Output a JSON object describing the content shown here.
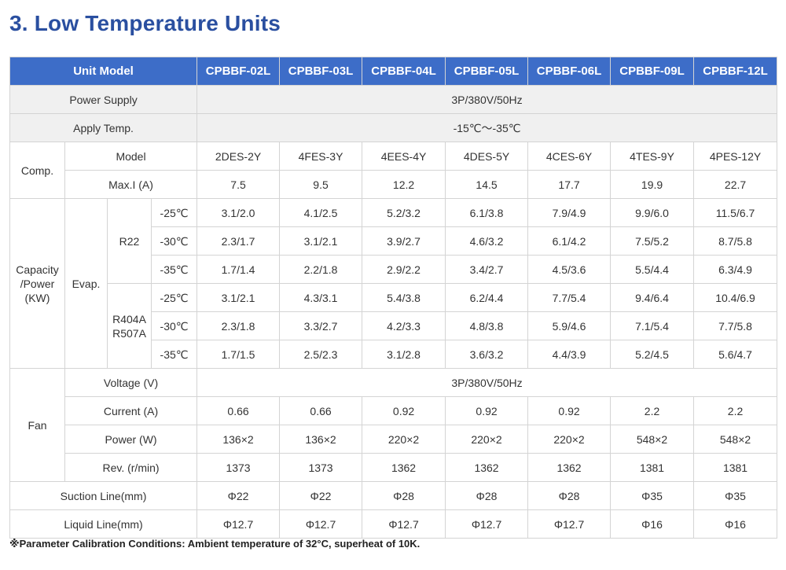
{
  "title": "3. Low Temperature Units",
  "header": {
    "unit_model": "Unit Model",
    "models": [
      "CPBBF-02L",
      "CPBBF-03L",
      "CPBBF-04L",
      "CPBBF-05L",
      "CPBBF-06L",
      "CPBBF-09L",
      "CPBBF-12L"
    ]
  },
  "power_supply": {
    "label": "Power Supply",
    "value": "3P/380V/50Hz"
  },
  "apply_temp": {
    "label": "Apply Temp.",
    "value": "-15℃～-35℃"
  },
  "comp": {
    "label": "Comp.",
    "model": {
      "label": "Model",
      "values": [
        "2DES-2Y",
        "4FES-3Y",
        "4EES-4Y",
        "4DES-5Y",
        "4CES-6Y",
        "4TES-9Y",
        "4PES-12Y"
      ]
    },
    "max_i": {
      "label": "Max.I (A)",
      "values": [
        "7.5",
        "9.5",
        "12.2",
        "14.5",
        "17.7",
        "19.9",
        "22.7"
      ]
    }
  },
  "capacity": {
    "label_lines": [
      "Capacity",
      "/Power",
      "(KW)"
    ],
    "evap_label": "Evap.",
    "groups": [
      {
        "refrigerant_lines": [
          "R22"
        ],
        "rows": [
          {
            "temp": "-25℃",
            "values": [
              "3.1/2.0",
              "4.1/2.5",
              "5.2/3.2",
              "6.1/3.8",
              "7.9/4.9",
              "9.9/6.0",
              "11.5/6.7"
            ]
          },
          {
            "temp": "-30℃",
            "values": [
              "2.3/1.7",
              "3.1/2.1",
              "3.9/2.7",
              "4.6/3.2",
              "6.1/4.2",
              "7.5/5.2",
              "8.7/5.8"
            ]
          },
          {
            "temp": "-35℃",
            "values": [
              "1.7/1.4",
              "2.2/1.8",
              "2.9/2.2",
              "3.4/2.7",
              "4.5/3.6",
              "5.5/4.4",
              "6.3/4.9"
            ]
          }
        ]
      },
      {
        "refrigerant_lines": [
          "R404A",
          "R507A"
        ],
        "rows": [
          {
            "temp": "-25℃",
            "values": [
              "3.1/2.1",
              "4.3/3.1",
              "5.4/3.8",
              "6.2/4.4",
              "7.7/5.4",
              "9.4/6.4",
              "10.4/6.9"
            ]
          },
          {
            "temp": "-30℃",
            "values": [
              "2.3/1.8",
              "3.3/2.7",
              "4.2/3.3",
              "4.8/3.8",
              "5.9/4.6",
              "7.1/5.4",
              "7.7/5.8"
            ]
          },
          {
            "temp": "-35℃",
            "values": [
              "1.7/1.5",
              "2.5/2.3",
              "3.1/2.8",
              "3.6/3.2",
              "4.4/3.9",
              "5.2/4.5",
              "5.6/4.7"
            ]
          }
        ]
      }
    ]
  },
  "fan": {
    "label": "Fan",
    "voltage": {
      "label": "Voltage (V)",
      "value": "3P/380V/50Hz"
    },
    "current": {
      "label": "Current (A)",
      "values": [
        "0.66",
        "0.66",
        "0.92",
        "0.92",
        "0.92",
        "2.2",
        "2.2"
      ]
    },
    "power": {
      "label": "Power (W)",
      "values": [
        "136×2",
        "136×2",
        "220×2",
        "220×2",
        "220×2",
        "548×2",
        "548×2"
      ]
    },
    "rev": {
      "label": "Rev. (r/min)",
      "values": [
        "1373",
        "1373",
        "1362",
        "1362",
        "1362",
        "1381",
        "1381"
      ]
    }
  },
  "suction_line": {
    "label": "Suction Line(mm)",
    "values": [
      "Φ22",
      "Φ22",
      "Φ28",
      "Φ28",
      "Φ28",
      "Φ35",
      "Φ35"
    ]
  },
  "liquid_line": {
    "label": "Liquid Line(mm)",
    "values": [
      "Φ12.7",
      "Φ12.7",
      "Φ12.7",
      "Φ12.7",
      "Φ12.7",
      "Φ16",
      "Φ16"
    ]
  },
  "note": "※Parameter Calibration Conditions: Ambient temperature of 32°C, superheat of 10K."
}
